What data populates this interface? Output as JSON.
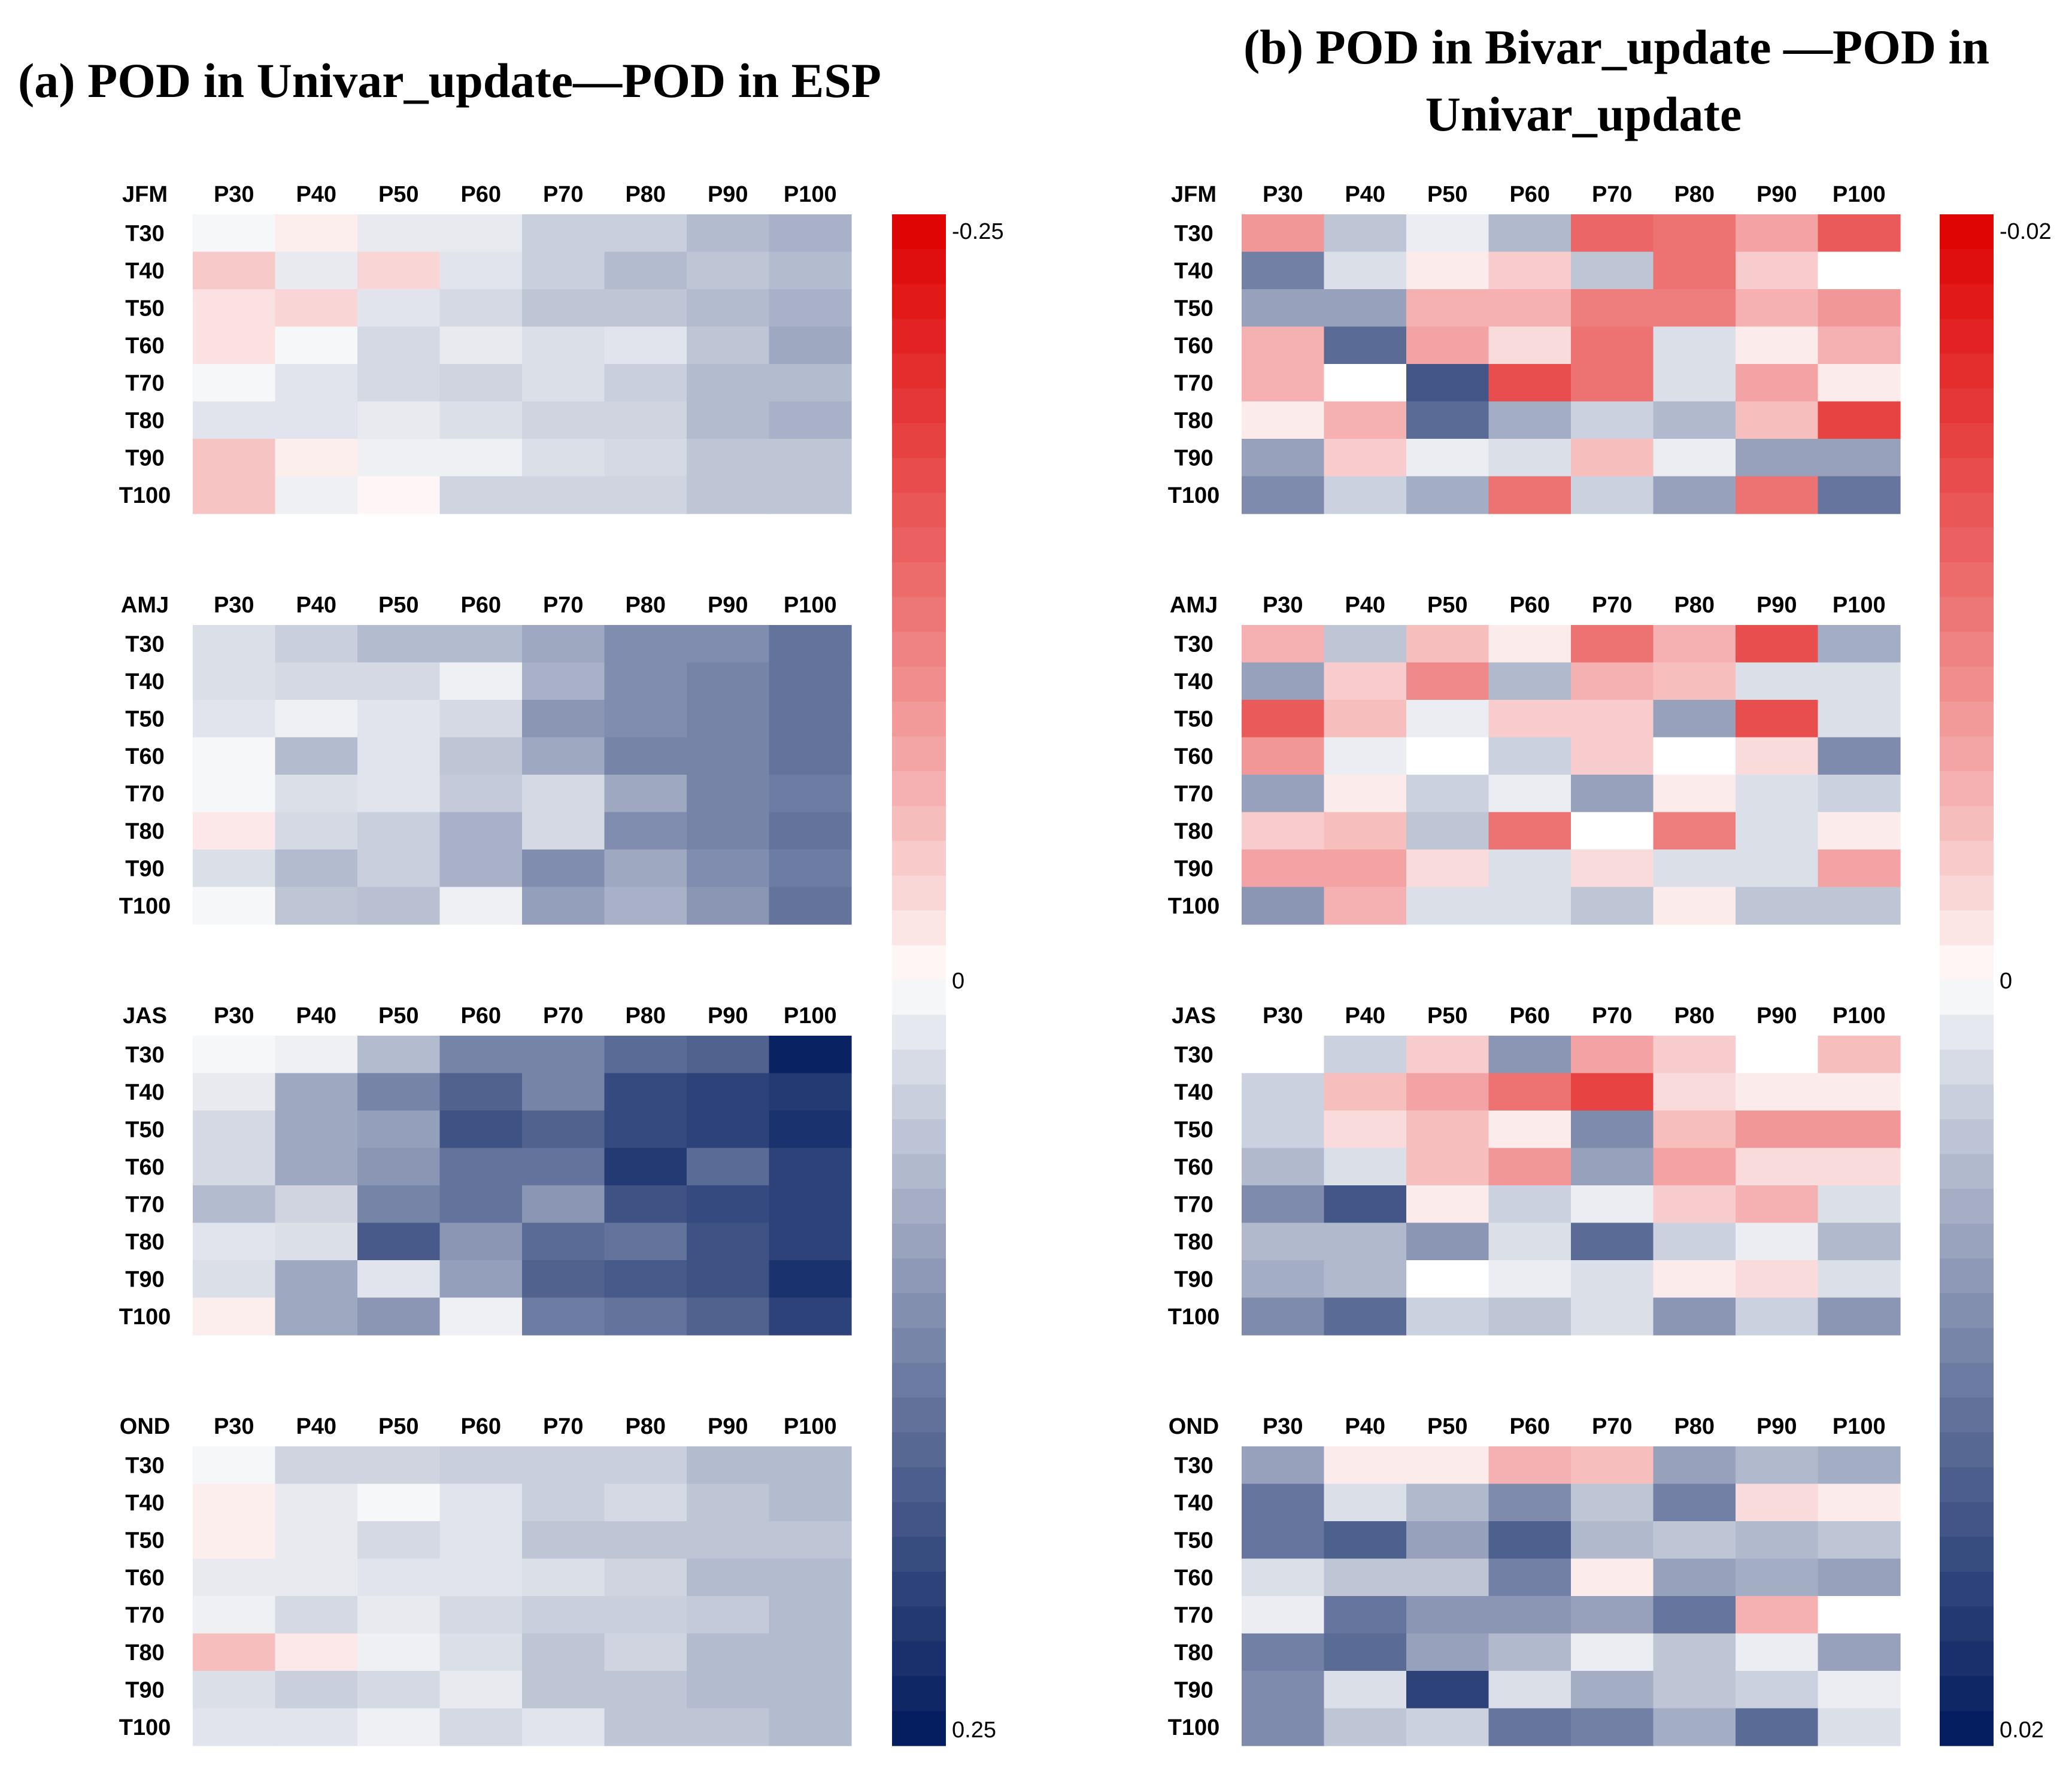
{
  "rows": [
    "T30",
    "T40",
    "T50",
    "T60",
    "T70",
    "T80",
    "T90",
    "T100"
  ],
  "cols": [
    "P30",
    "P40",
    "P50",
    "P60",
    "P70",
    "P80",
    "P90",
    "P100"
  ],
  "colors": {
    "neg": "#de0000",
    "zero": "#ffffff",
    "pos": "#001a5c"
  },
  "chart_data": [
    {
      "type": "heatmap",
      "panel": "a",
      "title": "(a) POD in Univar_update—POD in ESP",
      "colorbar": {
        "min_label": "-0.25",
        "zero_label": "0",
        "max_label": "0.25",
        "vmin": -0.25,
        "vmax": 0.25
      },
      "seasons": [
        {
          "name": "JFM",
          "values": [
            [
              0.005,
              -0.01,
              0.015,
              0.015,
              0.04,
              0.04,
              0.06,
              0.07
            ],
            [
              -0.04,
              0.015,
              -0.03,
              0.02,
              0.04,
              0.06,
              0.05,
              0.06
            ],
            [
              -0.02,
              -0.03,
              0.02,
              0.03,
              0.05,
              0.05,
              0.06,
              0.07
            ],
            [
              -0.02,
              0.005,
              0.03,
              0.015,
              0.025,
              0.02,
              0.05,
              0.08
            ],
            [
              0.005,
              0.02,
              0.03,
              0.035,
              0.025,
              0.04,
              0.06,
              0.06
            ],
            [
              0.02,
              0.02,
              0.015,
              0.025,
              0.035,
              0.035,
              0.06,
              0.07
            ],
            [
              -0.045,
              -0.01,
              0.01,
              0.01,
              0.025,
              0.03,
              0.05,
              0.05
            ],
            [
              -0.045,
              0.01,
              -0.005,
              0.035,
              0.035,
              0.035,
              0.05,
              0.05
            ]
          ]
        },
        {
          "name": "AMJ",
          "values": [
            [
              0.025,
              0.04,
              0.06,
              0.06,
              0.08,
              0.11,
              0.11,
              0.14
            ],
            [
              0.025,
              0.03,
              0.03,
              0.01,
              0.07,
              0.11,
              0.12,
              0.14
            ],
            [
              0.02,
              0.01,
              0.02,
              0.03,
              0.1,
              0.11,
              0.12,
              0.14
            ],
            [
              0.005,
              0.06,
              0.02,
              0.05,
              0.08,
              0.12,
              0.12,
              0.14
            ],
            [
              0.005,
              0.025,
              0.02,
              0.045,
              0.03,
              0.08,
              0.12,
              0.13
            ],
            [
              -0.015,
              0.03,
              0.04,
              0.07,
              0.03,
              0.11,
              0.12,
              0.14
            ],
            [
              0.025,
              0.06,
              0.04,
              0.07,
              0.11,
              0.08,
              0.11,
              0.13
            ],
            [
              0.005,
              0.05,
              0.055,
              0.01,
              0.09,
              0.07,
              0.1,
              0.14
            ]
          ]
        },
        {
          "name": "JAS",
          "values": [
            [
              0.005,
              0.01,
              0.06,
              0.12,
              0.12,
              0.15,
              0.16,
              0.24
            ],
            [
              0.015,
              0.08,
              0.12,
              0.16,
              0.12,
              0.19,
              0.2,
              0.21
            ],
            [
              0.03,
              0.08,
              0.09,
              0.18,
              0.16,
              0.19,
              0.2,
              0.22
            ],
            [
              0.03,
              0.08,
              0.1,
              0.14,
              0.14,
              0.21,
              0.15,
              0.2
            ],
            [
              0.06,
              0.035,
              0.12,
              0.14,
              0.1,
              0.18,
              0.19,
              0.2
            ],
            [
              0.02,
              0.025,
              0.17,
              0.1,
              0.15,
              0.14,
              0.18,
              0.2
            ],
            [
              0.025,
              0.08,
              0.02,
              0.09,
              0.16,
              0.17,
              0.18,
              0.22
            ],
            [
              -0.01,
              0.08,
              0.1,
              0.01,
              0.13,
              0.14,
              0.16,
              0.2
            ]
          ]
        },
        {
          "name": "OND",
          "values": [
            [
              0.005,
              0.035,
              0.035,
              0.04,
              0.04,
              0.04,
              0.06,
              0.06
            ],
            [
              -0.01,
              0.015,
              0.005,
              0.02,
              0.04,
              0.03,
              0.05,
              0.06
            ],
            [
              -0.01,
              0.015,
              0.03,
              0.02,
              0.05,
              0.05,
              0.05,
              0.05
            ],
            [
              0.015,
              0.015,
              0.02,
              0.02,
              0.025,
              0.035,
              0.06,
              0.06
            ],
            [
              0.01,
              0.03,
              0.015,
              0.03,
              0.04,
              0.04,
              0.045,
              0.06
            ],
            [
              -0.05,
              -0.015,
              0.01,
              0.025,
              0.05,
              0.035,
              0.06,
              0.06
            ],
            [
              0.025,
              0.04,
              0.03,
              0.015,
              0.05,
              0.05,
              0.06,
              0.06
            ],
            [
              0.02,
              0.02,
              0.01,
              0.03,
              0.02,
              0.05,
              0.05,
              0.06
            ]
          ]
        }
      ]
    },
    {
      "type": "heatmap",
      "panel": "b",
      "title_lines": [
        "(b) POD in Bivar_update —POD in",
        "Univar_update"
      ],
      "colorbar": {
        "min_label": "-0.02",
        "zero_label": "0",
        "max_label": "0.02",
        "vmin": -0.02,
        "vmax": 0.02
      },
      "seasons": [
        {
          "name": "JFM",
          "values": [
            [
              -0.007,
              0.004,
              0.001,
              0.005,
              -0.011,
              -0.01,
              -0.006,
              -0.012
            ],
            [
              0.01,
              0.002,
              -0.001,
              -0.003,
              0.004,
              -0.01,
              -0.003,
              0.0
            ],
            [
              0.007,
              0.007,
              -0.005,
              -0.005,
              -0.009,
              -0.009,
              -0.005,
              -0.007
            ],
            [
              -0.005,
              0.012,
              -0.006,
              -0.002,
              -0.01,
              0.002,
              -0.001,
              -0.005
            ],
            [
              -0.005,
              0.0,
              0.014,
              -0.013,
              -0.01,
              0.002,
              -0.006,
              -0.001
            ],
            [
              -0.001,
              -0.005,
              0.012,
              0.006,
              0.003,
              0.005,
              -0.004,
              -0.014
            ],
            [
              0.007,
              -0.003,
              0.001,
              0.002,
              -0.004,
              0.001,
              0.007,
              0.007
            ],
            [
              0.009,
              0.003,
              0.006,
              -0.01,
              0.003,
              0.007,
              -0.01,
              0.011
            ]
          ]
        },
        {
          "name": "AMJ",
          "values": [
            [
              -0.005,
              0.004,
              -0.004,
              -0.001,
              -0.01,
              -0.005,
              -0.013,
              0.006
            ],
            [
              0.007,
              -0.003,
              -0.008,
              0.005,
              -0.005,
              -0.004,
              0.002,
              0.002
            ],
            [
              -0.012,
              -0.004,
              0.001,
              -0.003,
              -0.003,
              0.007,
              -0.013,
              0.002
            ],
            [
              -0.007,
              0.001,
              0.0,
              0.003,
              -0.003,
              0.0,
              -0.002,
              0.009
            ],
            [
              0.007,
              -0.001,
              0.003,
              0.001,
              0.007,
              -0.001,
              0.002,
              0.003
            ],
            [
              -0.003,
              -0.004,
              0.004,
              -0.01,
              0.0,
              -0.009,
              0.002,
              -0.001
            ],
            [
              -0.006,
              -0.006,
              -0.002,
              0.002,
              -0.002,
              0.002,
              0.002,
              -0.006
            ],
            [
              0.008,
              -0.005,
              0.002,
              0.002,
              0.004,
              -0.001,
              0.004,
              0.004
            ]
          ]
        },
        {
          "name": "JAS",
          "values": [
            [
              0.0,
              0.003,
              -0.003,
              0.008,
              -0.006,
              -0.003,
              0.0,
              -0.004
            ],
            [
              0.003,
              -0.004,
              -0.006,
              -0.01,
              -0.014,
              -0.002,
              -0.001,
              -0.001
            ],
            [
              0.003,
              -0.002,
              -0.004,
              -0.001,
              0.009,
              -0.004,
              -0.007,
              -0.007
            ],
            [
              0.005,
              0.002,
              -0.004,
              -0.007,
              0.007,
              -0.006,
              -0.002,
              -0.002
            ],
            [
              0.009,
              0.014,
              -0.001,
              0.003,
              0.001,
              -0.003,
              -0.005,
              0.002
            ],
            [
              0.005,
              0.005,
              0.008,
              0.002,
              0.012,
              0.003,
              0.001,
              0.005
            ],
            [
              0.006,
              0.005,
              0.0,
              0.001,
              0.002,
              -0.001,
              -0.002,
              0.002
            ],
            [
              0.009,
              0.012,
              0.003,
              0.004,
              0.002,
              0.008,
              0.003,
              0.008
            ]
          ]
        },
        {
          "name": "OND",
          "values": [
            [
              0.007,
              -0.001,
              -0.001,
              -0.005,
              -0.004,
              0.007,
              0.005,
              0.006
            ],
            [
              0.011,
              0.002,
              0.005,
              0.009,
              0.004,
              0.01,
              -0.002,
              -0.001
            ],
            [
              0.011,
              0.013,
              0.007,
              0.013,
              0.005,
              0.004,
              0.005,
              0.004
            ],
            [
              0.002,
              0.004,
              0.004,
              0.01,
              -0.001,
              0.007,
              0.006,
              0.007
            ],
            [
              0.001,
              0.011,
              0.008,
              0.008,
              0.007,
              0.011,
              -0.005,
              0.0
            ],
            [
              0.01,
              0.012,
              0.007,
              0.005,
              0.001,
              0.004,
              0.001,
              0.007
            ],
            [
              0.009,
              0.002,
              0.016,
              0.002,
              0.006,
              0.004,
              0.003,
              0.001
            ],
            [
              0.009,
              0.004,
              0.003,
              0.011,
              0.01,
              0.006,
              0.012,
              0.002
            ]
          ]
        }
      ]
    }
  ]
}
